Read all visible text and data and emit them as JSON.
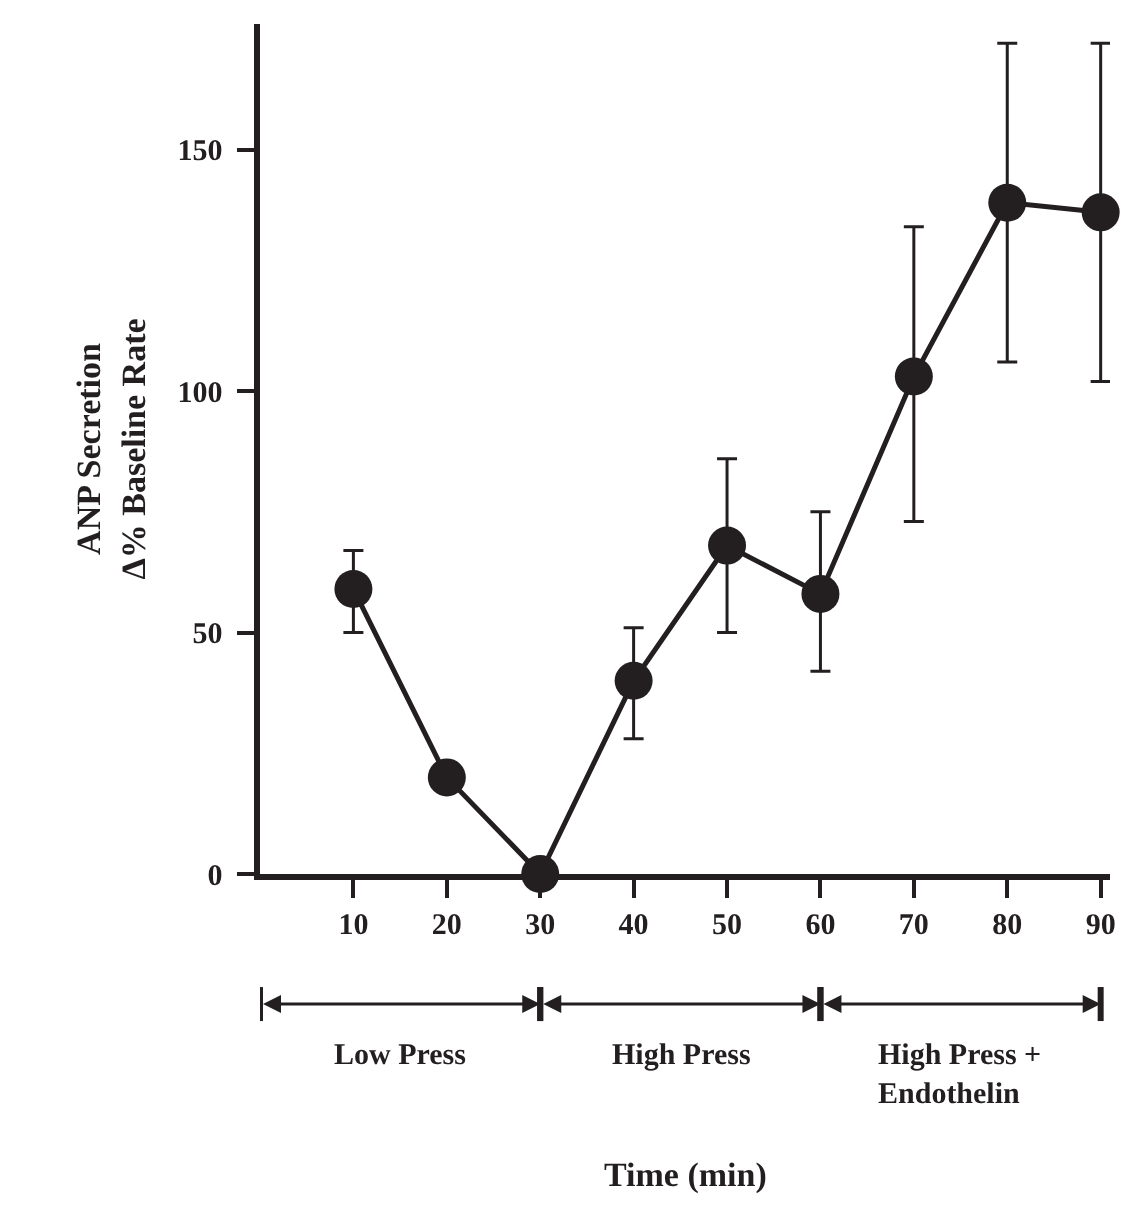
{
  "chart_data": {
    "type": "line",
    "annotations": [
      "Low Press",
      "High Press",
      "High Press +\nEndothelin",
      "Time (min)"
    ],
    "ylabel": "ANP Secretion\nΔ% Baseline Rate",
    "x": [
      10,
      20,
      30,
      40,
      50,
      60,
      70,
      80,
      90
    ],
    "values": [
      59,
      20,
      0,
      40,
      68,
      58,
      103,
      139,
      137
    ],
    "errors": [
      [
        50,
        67
      ],
      null,
      null,
      [
        28,
        51
      ],
      [
        50,
        86
      ],
      [
        42,
        75
      ],
      [
        73,
        134
      ],
      [
        106,
        172
      ],
      [
        102,
        172
      ]
    ],
    "color": "#231f20",
    "marker": "circle",
    "line_style": "solid",
    "xlim": [
      0,
      91
    ],
    "xticks": [
      10,
      20,
      30,
      40,
      50,
      60,
      70,
      80,
      90
    ],
    "ylim": [
      0,
      176
    ],
    "yticks": [
      0,
      50,
      100,
      150
    ],
    "grid": false
  }
}
